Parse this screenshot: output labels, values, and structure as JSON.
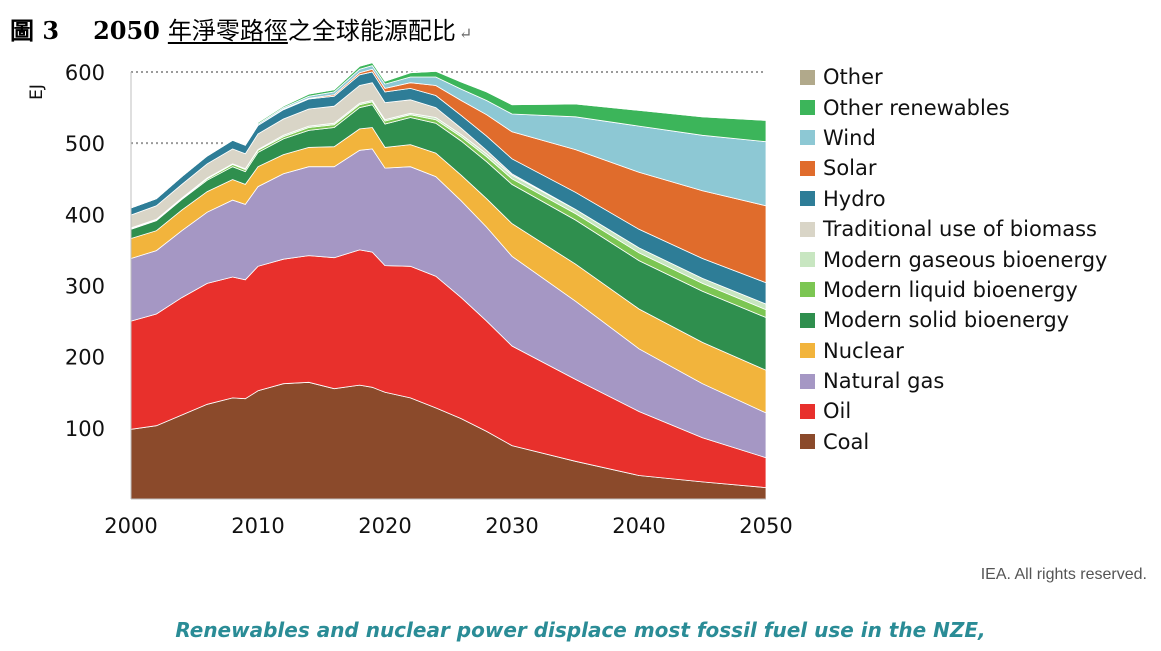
{
  "doc_title": {
    "fig_label": "圖 3",
    "year": "2050",
    "underlined_part": "年淨零路徑",
    "rest": "之全球能源配比",
    "paragraph_mark": "↵"
  },
  "credit": "IEA. All rights reserved.",
  "caption": "Renewables and nuclear power displace most fossil fuel use in the NZE,",
  "chart_data": {
    "type": "area",
    "stacked": true,
    "ylabel": "EJ",
    "xlabel": "",
    "title": "",
    "xlim": [
      2000,
      2050
    ],
    "ylim": [
      0,
      600
    ],
    "x_ticks": [
      "2000",
      "2010",
      "2020",
      "2030",
      "2040",
      "2050"
    ],
    "y_ticks": [
      "100",
      "200",
      "300",
      "400",
      "500",
      "600"
    ],
    "dotted_reference_lines": [
      500,
      600
    ],
    "legend_position": "right",
    "x": [
      2000,
      2002,
      2004,
      2006,
      2008,
      2009,
      2010,
      2012,
      2014,
      2016,
      2018,
      2019,
      2020,
      2022,
      2024,
      2026,
      2028,
      2030,
      2035,
      2040,
      2045,
      2050
    ],
    "series": [
      {
        "name": "Coal",
        "color": "#8b4a2b",
        "values": [
          98,
          103,
          118,
          133,
          142,
          141,
          152,
          162,
          164,
          155,
          160,
          157,
          150,
          142,
          128,
          113,
          95,
          75,
          53,
          33,
          24,
          16
        ]
      },
      {
        "name": "Oil",
        "color": "#e8302c",
        "values": [
          152,
          157,
          165,
          170,
          170,
          167,
          175,
          175,
          178,
          184,
          190,
          190,
          178,
          185,
          185,
          170,
          155,
          140,
          115,
          90,
          62,
          42
        ]
      },
      {
        "name": "Natural gas",
        "color": "#a597c4",
        "values": [
          88,
          89,
          94,
          100,
          108,
          106,
          112,
          120,
          125,
          128,
          140,
          145,
          137,
          140,
          140,
          136,
          132,
          126,
          110,
          88,
          76,
          63
        ]
      },
      {
        "name": "Nuclear",
        "color": "#f2b43c",
        "values": [
          28,
          28,
          29,
          29,
          29,
          28,
          28,
          27,
          27,
          28,
          30,
          30,
          29,
          31,
          33,
          36,
          40,
          46,
          52,
          56,
          58,
          60
        ]
      },
      {
        "name": "Modern solid bioenergy",
        "color": "#2f8f4e",
        "values": [
          13,
          14,
          15,
          16,
          18,
          18,
          20,
          22,
          24,
          27,
          30,
          32,
          33,
          38,
          42,
          48,
          52,
          55,
          62,
          68,
          72,
          74
        ]
      },
      {
        "name": "Modern liquid bioenergy",
        "color": "#7cc653",
        "values": [
          1,
          1,
          1,
          2,
          3,
          3,
          3,
          3,
          4,
          4,
          4,
          4,
          4,
          4,
          5,
          6,
          7,
          8,
          9,
          11,
          11,
          11
        ]
      },
      {
        "name": "Modern gaseous bioenergy",
        "color": "#c8e6c1",
        "values": [
          1,
          1,
          1,
          1,
          1,
          1,
          1,
          2,
          2,
          2,
          2,
          2,
          2,
          2,
          3,
          3,
          4,
          5,
          6,
          7,
          7,
          8
        ]
      },
      {
        "name": "Traditional use of biomass",
        "color": "#d9d5c7",
        "values": [
          18,
          19,
          19,
          20,
          21,
          21,
          22,
          23,
          24,
          24,
          25,
          25,
          24,
          19,
          14,
          9,
          5,
          2,
          0,
          0,
          0,
          0
        ]
      },
      {
        "name": "Hydro",
        "color": "#2e7d97",
        "values": [
          10,
          10,
          11,
          11,
          12,
          12,
          12,
          13,
          14,
          14,
          15,
          15,
          15,
          16,
          17,
          18,
          20,
          21,
          24,
          26,
          28,
          30
        ]
      },
      {
        "name": "Solar",
        "color": "#e06c2c",
        "values": [
          0,
          0,
          0,
          0,
          0,
          0,
          0,
          1,
          1,
          2,
          3,
          4,
          5,
          8,
          14,
          21,
          30,
          38,
          60,
          80,
          95,
          108
        ]
      },
      {
        "name": "Wind",
        "color": "#8dc8d4",
        "values": [
          0,
          0,
          0,
          1,
          1,
          1,
          2,
          2,
          3,
          4,
          5,
          5,
          6,
          8,
          12,
          16,
          20,
          25,
          46,
          65,
          78,
          90
        ]
      },
      {
        "name": "Other renewables",
        "color": "#3cb55a",
        "values": [
          0,
          0,
          1,
          1,
          1,
          1,
          2,
          2,
          3,
          3,
          4,
          4,
          4,
          6,
          8,
          10,
          12,
          13,
          18,
          22,
          26,
          30
        ]
      },
      {
        "name": "Other",
        "color": "#b1a98b",
        "values": [
          1,
          1,
          1,
          1,
          1,
          1,
          1,
          1,
          1,
          1,
          1,
          1,
          1,
          1,
          1,
          1,
          1,
          1,
          0,
          0,
          0,
          0
        ]
      }
    ],
    "legend_order": [
      "Other",
      "Other renewables",
      "Wind",
      "Solar",
      "Hydro",
      "Traditional use of biomass",
      "Modern gaseous bioenergy",
      "Modern liquid bioenergy",
      "Modern solid bioenergy",
      "Nuclear",
      "Natural gas",
      "Oil",
      "Coal"
    ]
  }
}
